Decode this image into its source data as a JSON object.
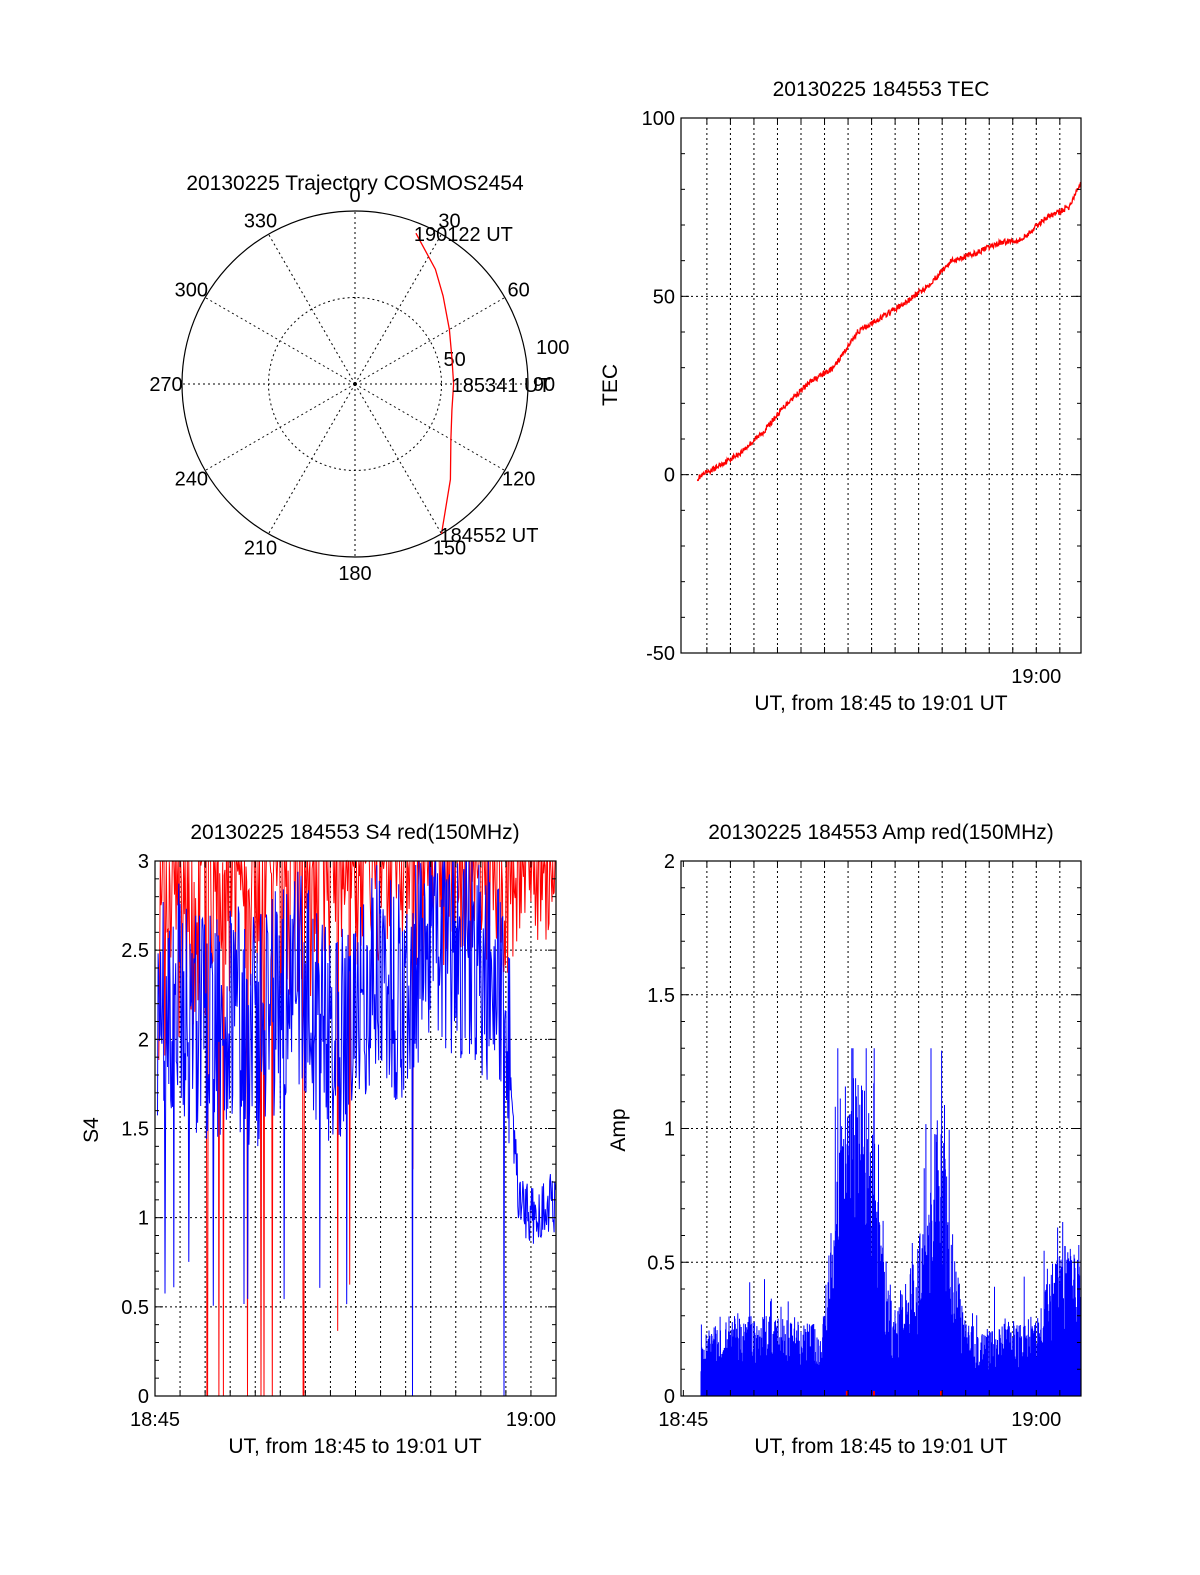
{
  "colors": {
    "red": "#ff0000",
    "blue": "#0000ff",
    "axis": "#000000"
  },
  "chart_data": [
    {
      "type": "polar",
      "title": "20130225 Trajectory COSMOS2454",
      "angle_labels": [
        "0",
        "30",
        "60",
        "90",
        "120",
        "150",
        "180",
        "210",
        "240",
        "270",
        "300",
        "330"
      ],
      "radial_labels": [
        "50",
        "100"
      ],
      "r_max": 100,
      "points": [
        {
          "label": "184552 UT",
          "azimuth": 150,
          "r": 100
        },
        {
          "label": "185341 UT",
          "azimuth": 90,
          "r": 57
        },
        {
          "label": "190122 UT",
          "azimuth": 22,
          "r": 94
        }
      ],
      "trajectory": [
        {
          "azimuth": 150,
          "r": 100
        },
        {
          "azimuth": 135,
          "r": 78
        },
        {
          "azimuth": 120,
          "r": 64
        },
        {
          "azimuth": 105,
          "r": 58
        },
        {
          "azimuth": 90,
          "r": 57
        },
        {
          "azimuth": 75,
          "r": 58
        },
        {
          "azimuth": 60,
          "r": 63
        },
        {
          "azimuth": 45,
          "r": 72
        },
        {
          "azimuth": 35,
          "r": 81
        },
        {
          "azimuth": 22,
          "r": 94
        }
      ]
    },
    {
      "type": "line",
      "title": "20130225 184553 TEC",
      "ylabel": "TEC",
      "xlabel": "UT, from 18:45 to 19:01 UT",
      "x_tick_labels": [
        "19:00"
      ],
      "y_tick_labels": [
        "-50",
        "0",
        "50",
        "100"
      ],
      "ylim": [
        -50,
        100
      ],
      "xlim": [
        0,
        17
      ],
      "series": [
        {
          "x": [
            0.7,
            1.5,
            2.5,
            3.5,
            4.5,
            5.5,
            6.5,
            7.5,
            8.5,
            9.5,
            10.5,
            11.5,
            12.5,
            13.5,
            14.5,
            15.5,
            16.5,
            17
          ],
          "values": [
            -1,
            2,
            6,
            12,
            20,
            26,
            30,
            40,
            44,
            48,
            53,
            60,
            62,
            65,
            66,
            72,
            75,
            82
          ]
        }
      ]
    },
    {
      "type": "line",
      "title": "20130225 184553 S4 red(150MHz)",
      "ylabel": "S4",
      "xlabel": "UT, from 18:45 to 19:01 UT",
      "x_tick_labels": [
        "18:45",
        "19:00"
      ],
      "y_tick_labels": [
        "0",
        "0.5",
        "1",
        "1.5",
        "2",
        "2.5",
        "3"
      ],
      "ylim": [
        0,
        3
      ],
      "xlim": [
        0,
        16
      ],
      "series": [
        {
          "x": [
            0.1,
            1,
            2,
            3,
            4,
            5,
            6,
            7,
            8,
            9,
            10,
            11,
            12,
            13,
            14,
            15,
            16
          ],
          "values": [
            2.3,
            2.5,
            2.6,
            2.7,
            2.8,
            2.6,
            2.7,
            2.8,
            2.8,
            2.9,
            2.9,
            2.8,
            2.9,
            2.9,
            2.8,
            2.8,
            2.9
          ]
        },
        {
          "x": [
            0.1,
            1,
            2,
            3,
            4,
            5,
            6,
            7,
            8,
            9,
            10,
            11,
            12,
            13,
            14,
            14.5,
            15,
            16
          ],
          "values": [
            2.0,
            2.1,
            1.9,
            2.0,
            1.9,
            2.1,
            2.2,
            1.8,
            2.0,
            2.3,
            2.1,
            2.5,
            2.4,
            2.3,
            2.1,
            1.1,
            1.0,
            1.1
          ]
        }
      ]
    },
    {
      "type": "line",
      "title": "20130225 184553 Amp red(150MHz)",
      "ylabel": "Amp",
      "xlabel": "UT, from 18:45 to 19:01 UT",
      "x_tick_labels": [
        "18:45",
        "19:00"
      ],
      "y_tick_labels": [
        "0",
        "0.5",
        "1",
        "1.5",
        "2"
      ],
      "ylim": [
        0,
        2
      ],
      "xlim": [
        0,
        17
      ],
      "series": [
        {
          "x": [
            0.8,
            2,
            3,
            4,
            5,
            6,
            7,
            8,
            9,
            10,
            11,
            12,
            13,
            14,
            15,
            16,
            17
          ],
          "values": [
            0.25,
            0.3,
            0.3,
            0.3,
            0.28,
            0.27,
            1.25,
            1.15,
            0.3,
            0.55,
            1.1,
            0.3,
            0.25,
            0.28,
            0.3,
            0.55,
            0.6
          ]
        }
      ]
    }
  ]
}
